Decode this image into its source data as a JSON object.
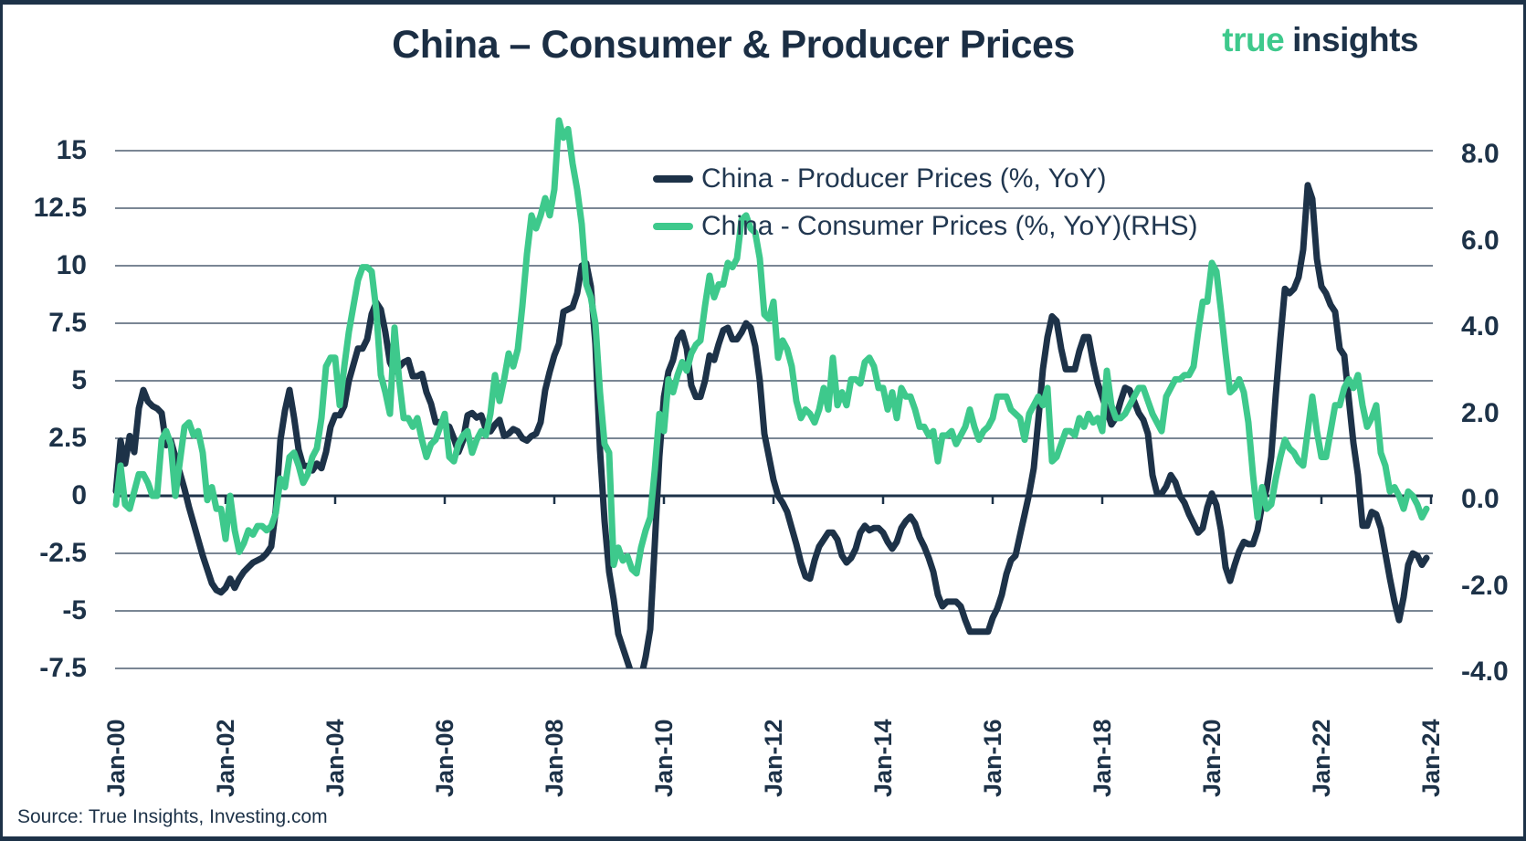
{
  "header": {
    "title": "China – Consumer & Producer Prices",
    "logo": {
      "word1": "true",
      "word2": "insights"
    }
  },
  "source": "Source: True Insights, Investing.com",
  "colors": {
    "navy": "#1d3248",
    "green": "#3ec98c",
    "grid": "#2a3f55",
    "zero_line": "#1d3248",
    "text": "#1d3248",
    "background": "#ffffff"
  },
  "chart_data": {
    "type": "line",
    "title": "China – Consumer & Producer Prices",
    "frequency": "monthly",
    "x_start": "Jan-2000",
    "x_end": "Dec-2023",
    "grid": true,
    "legend_position": "top-center-inside",
    "x_tick_labels": [
      "Jan-00",
      "Jan-02",
      "Jan-04",
      "Jan-06",
      "Jan-08",
      "Jan-10",
      "Jan-12",
      "Jan-14",
      "Jan-16",
      "Jan-18",
      "Jan-20",
      "Jan-22",
      "Jan-24"
    ],
    "left_axis": {
      "range": [
        -7.5,
        15
      ],
      "ticks": [
        15,
        12.5,
        10,
        7.5,
        5,
        2.5,
        0,
        -2.5,
        -5,
        -7.5
      ],
      "labels": [
        "15",
        "12.5",
        "10",
        "7.5",
        "5",
        "2.5",
        "0",
        "-2.5",
        "-5",
        "-7.5"
      ]
    },
    "right_axis": {
      "range": [
        -4,
        8
      ],
      "ticks": [
        8,
        6,
        4,
        2,
        0,
        -2,
        -4
      ],
      "labels": [
        "8.0",
        "6.0",
        "4.0",
        "2.0",
        "0.0",
        "-2.0",
        "-4.0"
      ]
    },
    "series": [
      {
        "name": "China - Producer Prices (%, YoY)",
        "axis": "left",
        "color": "#1d3248",
        "values": [
          0.2,
          2.4,
          1.4,
          2.6,
          1.9,
          3.8,
          4.6,
          4.1,
          3.9,
          3.8,
          3.6,
          2.2,
          2.4,
          1.7,
          1.0,
          0.3,
          -0.5,
          -1.2,
          -1.9,
          -2.6,
          -3.2,
          -3.8,
          -4.1,
          -4.2,
          -4.0,
          -3.6,
          -4.0,
          -3.6,
          -3.3,
          -3.1,
          -2.9,
          -2.8,
          -2.7,
          -2.5,
          -2.2,
          -0.6,
          2.4,
          3.7,
          4.6,
          3.4,
          2.0,
          1.3,
          1.3,
          1.1,
          1.4,
          1.2,
          1.9,
          3.0,
          3.5,
          3.5,
          3.9,
          5.0,
          5.7,
          6.4,
          6.4,
          6.8,
          7.9,
          8.4,
          8.1,
          7.1,
          5.8,
          5.4,
          5.6,
          5.8,
          5.9,
          5.2,
          5.2,
          5.3,
          4.5,
          4.0,
          3.2,
          3.2,
          3.1,
          3.0,
          2.5,
          1.9,
          2.4,
          3.5,
          3.6,
          3.4,
          3.5,
          2.9,
          2.8,
          3.1,
          3.3,
          2.6,
          2.7,
          2.9,
          2.8,
          2.5,
          2.4,
          2.6,
          2.7,
          3.2,
          4.6,
          5.4,
          6.1,
          6.6,
          8.0,
          8.1,
          8.2,
          8.8,
          10.0,
          10.1,
          9.1,
          6.6,
          2.0,
          -1.1,
          -3.3,
          -4.5,
          -6.0,
          -6.6,
          -7.2,
          -7.8,
          -8.2,
          -7.9,
          -7.0,
          -5.8,
          -2.1,
          1.7,
          4.3,
          5.4,
          5.9,
          6.8,
          7.1,
          6.4,
          4.8,
          4.3,
          4.3,
          5.0,
          6.1,
          5.9,
          6.6,
          7.2,
          7.3,
          6.8,
          6.8,
          7.1,
          7.5,
          7.3,
          6.5,
          5.0,
          2.7,
          1.7,
          0.7,
          0.0,
          -0.3,
          -0.7,
          -1.4,
          -2.1,
          -2.9,
          -3.5,
          -3.6,
          -2.8,
          -2.2,
          -1.9,
          -1.6,
          -1.6,
          -1.9,
          -2.6,
          -2.9,
          -2.7,
          -2.3,
          -1.6,
          -1.3,
          -1.5,
          -1.4,
          -1.4,
          -1.6,
          -2.0,
          -2.3,
          -2.0,
          -1.4,
          -1.1,
          -0.9,
          -1.2,
          -1.8,
          -2.2,
          -2.7,
          -3.3,
          -4.3,
          -4.8,
          -4.6,
          -4.6,
          -4.6,
          -4.8,
          -5.4,
          -5.9,
          -5.9,
          -5.9,
          -5.9,
          -5.9,
          -5.3,
          -4.9,
          -4.3,
          -3.4,
          -2.8,
          -2.6,
          -1.7,
          -0.8,
          0.1,
          1.2,
          3.3,
          5.5,
          6.9,
          7.8,
          7.6,
          6.4,
          5.5,
          5.5,
          5.5,
          6.3,
          6.9,
          6.9,
          5.8,
          4.9,
          4.3,
          3.7,
          3.1,
          3.4,
          4.1,
          4.7,
          4.6,
          4.1,
          3.6,
          3.3,
          2.7,
          0.9,
          0.1,
          0.1,
          0.4,
          0.9,
          0.6,
          0.0,
          -0.3,
          -0.8,
          -1.2,
          -1.6,
          -1.4,
          -0.5,
          0.1,
          -0.4,
          -1.5,
          -3.1,
          -3.7,
          -3.0,
          -2.4,
          -2.0,
          -2.1,
          -2.1,
          -1.5,
          -0.4,
          0.3,
          1.7,
          4.4,
          6.8,
          9.0,
          8.8,
          9.0,
          9.5,
          10.7,
          13.5,
          12.9,
          10.3,
          9.1,
          8.8,
          8.3,
          8.0,
          6.4,
          6.1,
          4.2,
          2.3,
          0.9,
          -1.3,
          -1.3,
          -0.7,
          -0.8,
          -1.4,
          -2.5,
          -3.6,
          -4.6,
          -5.4,
          -4.4,
          -3.0,
          -2.5,
          -2.6,
          -3.0,
          -2.7
        ]
      },
      {
        "name": "China - Consumer Prices (%, YoY)(RHS)",
        "axis": "right",
        "color": "#3ec98c",
        "values": [
          -0.2,
          0.7,
          -0.2,
          -0.3,
          0.1,
          0.5,
          0.5,
          0.3,
          0.0,
          0.0,
          1.3,
          1.5,
          1.2,
          0.0,
          0.8,
          1.6,
          1.7,
          1.4,
          1.5,
          1.0,
          -0.1,
          0.2,
          -0.3,
          -0.3,
          -1.0,
          0.0,
          -0.8,
          -1.3,
          -1.1,
          -0.8,
          -0.9,
          -0.7,
          -0.7,
          -0.8,
          -0.7,
          -0.4,
          0.4,
          0.2,
          0.9,
          1.0,
          0.7,
          0.3,
          0.5,
          0.9,
          1.1,
          1.8,
          3.0,
          3.2,
          3.2,
          2.1,
          3.0,
          3.8,
          4.4,
          5.0,
          5.3,
          5.3,
          5.2,
          4.3,
          2.8,
          2.4,
          1.9,
          3.9,
          2.7,
          1.8,
          1.8,
          1.6,
          1.8,
          1.3,
          0.9,
          1.2,
          1.3,
          1.6,
          1.9,
          0.9,
          0.8,
          1.2,
          1.4,
          1.5,
          1.0,
          1.3,
          1.5,
          1.4,
          1.9,
          2.8,
          2.2,
          2.7,
          3.3,
          3.0,
          3.4,
          4.4,
          5.6,
          6.5,
          6.2,
          6.5,
          6.9,
          6.5,
          7.1,
          8.7,
          8.3,
          8.5,
          7.7,
          7.1,
          6.3,
          4.9,
          4.6,
          4.0,
          2.4,
          1.2,
          1.0,
          -1.6,
          -1.2,
          -1.5,
          -1.4,
          -1.7,
          -1.8,
          -1.2,
          -0.8,
          -0.5,
          0.6,
          1.9,
          1.5,
          2.7,
          2.4,
          2.8,
          3.1,
          2.9,
          3.3,
          3.5,
          3.6,
          4.4,
          5.1,
          4.6,
          4.9,
          4.9,
          5.4,
          5.3,
          5.5,
          6.4,
          6.5,
          6.2,
          6.1,
          5.5,
          4.2,
          4.1,
          4.5,
          3.2,
          3.6,
          3.4,
          3.0,
          2.2,
          1.8,
          2.0,
          1.9,
          1.7,
          2.0,
          2.5,
          2.0,
          3.2,
          2.1,
          2.4,
          2.1,
          2.7,
          2.7,
          2.6,
          3.1,
          3.2,
          3.0,
          2.5,
          2.5,
          2.0,
          2.4,
          1.8,
          2.5,
          2.3,
          2.3,
          2.0,
          1.6,
          1.6,
          1.4,
          1.5,
          0.8,
          1.4,
          1.4,
          1.5,
          1.2,
          1.4,
          1.6,
          2.0,
          1.6,
          1.3,
          1.5,
          1.6,
          1.8,
          2.3,
          2.3,
          2.3,
          2.0,
          1.9,
          1.8,
          1.3,
          1.9,
          2.1,
          2.3,
          2.1,
          2.5,
          0.8,
          0.9,
          1.2,
          1.5,
          1.5,
          1.4,
          1.8,
          1.6,
          1.9,
          1.7,
          1.8,
          1.5,
          2.9,
          2.1,
          1.8,
          1.8,
          1.9,
          2.1,
          2.3,
          2.5,
          2.5,
          2.2,
          1.9,
          1.7,
          1.5,
          2.3,
          2.5,
          2.7,
          2.7,
          2.8,
          2.8,
          3.0,
          3.8,
          4.5,
          4.5,
          5.4,
          5.2,
          4.3,
          3.3,
          2.4,
          2.5,
          2.7,
          2.4,
          1.7,
          0.5,
          -0.5,
          0.2,
          -0.3,
          -0.2,
          0.4,
          0.9,
          1.3,
          1.1,
          1.0,
          0.8,
          0.7,
          1.5,
          2.3,
          1.5,
          0.9,
          0.9,
          1.5,
          2.1,
          2.1,
          2.5,
          2.7,
          2.5,
          2.8,
          2.1,
          1.6,
          1.8,
          2.1,
          1.0,
          0.7,
          0.1,
          0.2,
          0.0,
          -0.3,
          0.1,
          0.0,
          -0.2,
          -0.5,
          -0.3
        ]
      }
    ]
  }
}
